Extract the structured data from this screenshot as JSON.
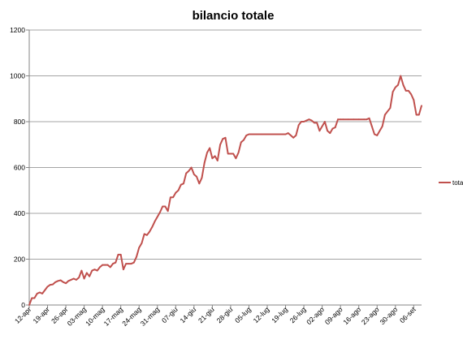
{
  "chart_data": {
    "type": "line",
    "title": "bilancio totale",
    "xlabel": "",
    "ylabel": "",
    "ylim": [
      0,
      1200
    ],
    "y_ticks": [
      0,
      200,
      400,
      600,
      800,
      1000,
      1200
    ],
    "x_ticks": [
      "12-apr",
      "19-apr",
      "26-apr",
      "03-mag",
      "10-mag",
      "17-mag",
      "24-mag",
      "31-mag",
      "07-giu",
      "14-giu",
      "21-giu",
      "28-giu",
      "05-lug",
      "12-lug",
      "19-lug",
      "26-lug",
      "02-ago",
      "09-ago",
      "16-ago",
      "23-ago",
      "30-ago",
      "06-set"
    ],
    "x_start": "2012-04-12",
    "x_end": "2012-09-06",
    "grid": "horizontal",
    "legend_position": "right",
    "series": [
      {
        "name": "totale",
        "color": "#C0504D",
        "points": [
          [
            "2012-04-12",
            0
          ],
          [
            "2012-04-13",
            30
          ],
          [
            "2012-04-14",
            30
          ],
          [
            "2012-04-15",
            50
          ],
          [
            "2012-04-16",
            55
          ],
          [
            "2012-04-17",
            50
          ],
          [
            "2012-04-18",
            65
          ],
          [
            "2012-04-19",
            80
          ],
          [
            "2012-04-20",
            88
          ],
          [
            "2012-04-21",
            90
          ],
          [
            "2012-04-22",
            100
          ],
          [
            "2012-04-23",
            105
          ],
          [
            "2012-04-24",
            108
          ],
          [
            "2012-04-25",
            100
          ],
          [
            "2012-04-26",
            95
          ],
          [
            "2012-04-27",
            105
          ],
          [
            "2012-04-28",
            110
          ],
          [
            "2012-04-29",
            115
          ],
          [
            "2012-04-30",
            110
          ],
          [
            "2012-05-01",
            120
          ],
          [
            "2012-05-02",
            150
          ],
          [
            "2012-05-03",
            115
          ],
          [
            "2012-05-04",
            140
          ],
          [
            "2012-05-05",
            125
          ],
          [
            "2012-05-06",
            150
          ],
          [
            "2012-05-07",
            155
          ],
          [
            "2012-05-08",
            150
          ],
          [
            "2012-05-09",
            165
          ],
          [
            "2012-05-10",
            175
          ],
          [
            "2012-05-11",
            175
          ],
          [
            "2012-05-12",
            175
          ],
          [
            "2012-05-13",
            165
          ],
          [
            "2012-05-14",
            180
          ],
          [
            "2012-05-15",
            185
          ],
          [
            "2012-05-16",
            220
          ],
          [
            "2012-05-17",
            220
          ],
          [
            "2012-05-18",
            155
          ],
          [
            "2012-05-19",
            180
          ],
          [
            "2012-05-20",
            180
          ],
          [
            "2012-05-21",
            180
          ],
          [
            "2012-05-22",
            185
          ],
          [
            "2012-05-23",
            210
          ],
          [
            "2012-05-24",
            250
          ],
          [
            "2012-05-25",
            270
          ],
          [
            "2012-05-26",
            310
          ],
          [
            "2012-05-27",
            305
          ],
          [
            "2012-05-28",
            320
          ],
          [
            "2012-05-29",
            340
          ],
          [
            "2012-05-30",
            365
          ],
          [
            "2012-05-31",
            385
          ],
          [
            "2012-06-01",
            405
          ],
          [
            "2012-06-02",
            430
          ],
          [
            "2012-06-03",
            430
          ],
          [
            "2012-06-04",
            410
          ],
          [
            "2012-06-05",
            470
          ],
          [
            "2012-06-06",
            470
          ],
          [
            "2012-06-07",
            490
          ],
          [
            "2012-06-08",
            500
          ],
          [
            "2012-06-09",
            525
          ],
          [
            "2012-06-10",
            530
          ],
          [
            "2012-06-11",
            575
          ],
          [
            "2012-06-12",
            585
          ],
          [
            "2012-06-13",
            600
          ],
          [
            "2012-06-14",
            570
          ],
          [
            "2012-06-15",
            560
          ],
          [
            "2012-06-16",
            530
          ],
          [
            "2012-06-17",
            555
          ],
          [
            "2012-06-18",
            620
          ],
          [
            "2012-06-19",
            665
          ],
          [
            "2012-06-20",
            685
          ],
          [
            "2012-06-21",
            640
          ],
          [
            "2012-06-22",
            650
          ],
          [
            "2012-06-23",
            630
          ],
          [
            "2012-06-24",
            700
          ],
          [
            "2012-06-25",
            725
          ],
          [
            "2012-06-26",
            730
          ],
          [
            "2012-06-27",
            660
          ],
          [
            "2012-06-28",
            660
          ],
          [
            "2012-06-29",
            660
          ],
          [
            "2012-06-30",
            640
          ],
          [
            "2012-07-01",
            665
          ],
          [
            "2012-07-02",
            710
          ],
          [
            "2012-07-03",
            720
          ],
          [
            "2012-07-04",
            740
          ],
          [
            "2012-07-05",
            745
          ],
          [
            "2012-07-06",
            745
          ],
          [
            "2012-07-07",
            745
          ],
          [
            "2012-07-08",
            745
          ],
          [
            "2012-07-10",
            745
          ],
          [
            "2012-07-14",
            745
          ],
          [
            "2012-07-18",
            745
          ],
          [
            "2012-07-19",
            745
          ],
          [
            "2012-07-20",
            750
          ],
          [
            "2012-07-21",
            740
          ],
          [
            "2012-07-22",
            730
          ],
          [
            "2012-07-23",
            740
          ],
          [
            "2012-07-24",
            785
          ],
          [
            "2012-07-25",
            800
          ],
          [
            "2012-07-26",
            800
          ],
          [
            "2012-07-27",
            805
          ],
          [
            "2012-07-28",
            810
          ],
          [
            "2012-07-29",
            805
          ],
          [
            "2012-07-30",
            795
          ],
          [
            "2012-07-31",
            795
          ],
          [
            "2012-08-01",
            760
          ],
          [
            "2012-08-02",
            780
          ],
          [
            "2012-08-03",
            800
          ],
          [
            "2012-08-04",
            760
          ],
          [
            "2012-08-05",
            750
          ],
          [
            "2012-08-06",
            770
          ],
          [
            "2012-08-07",
            775
          ],
          [
            "2012-08-08",
            810
          ],
          [
            "2012-08-09",
            810
          ],
          [
            "2012-08-10",
            810
          ],
          [
            "2012-08-12",
            810
          ],
          [
            "2012-08-14",
            810
          ],
          [
            "2012-08-16",
            810
          ],
          [
            "2012-08-18",
            810
          ],
          [
            "2012-08-19",
            810
          ],
          [
            "2012-08-20",
            815
          ],
          [
            "2012-08-21",
            780
          ],
          [
            "2012-08-22",
            745
          ],
          [
            "2012-08-23",
            740
          ],
          [
            "2012-08-24",
            760
          ],
          [
            "2012-08-25",
            780
          ],
          [
            "2012-08-26",
            830
          ],
          [
            "2012-08-27",
            845
          ],
          [
            "2012-08-28",
            860
          ],
          [
            "2012-08-29",
            930
          ],
          [
            "2012-08-30",
            950
          ],
          [
            "2012-08-31",
            960
          ],
          [
            "2012-09-01",
            1000
          ],
          [
            "2012-09-02",
            960
          ],
          [
            "2012-09-03",
            935
          ],
          [
            "2012-09-04",
            935
          ],
          [
            "2012-09-05",
            920
          ],
          [
            "2012-09-06",
            895
          ],
          [
            "2012-09-07",
            830
          ],
          [
            "2012-09-08",
            830
          ],
          [
            "2012-09-09",
            870
          ]
        ]
      }
    ]
  }
}
